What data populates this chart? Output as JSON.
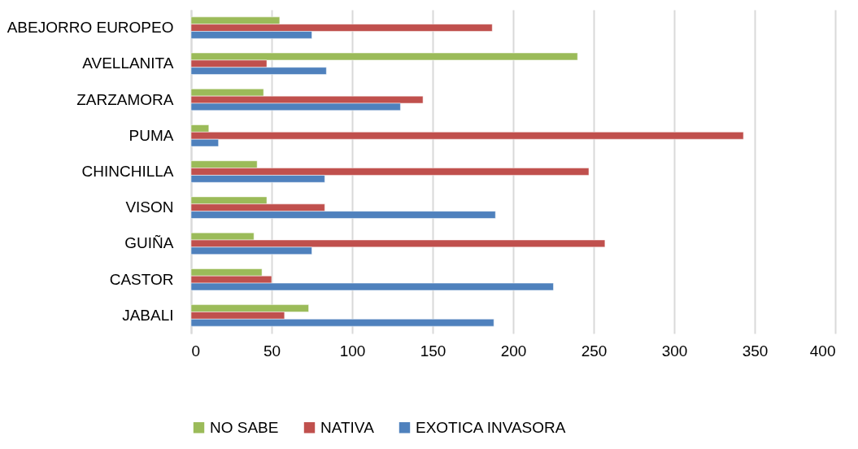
{
  "chart_data": {
    "type": "bar",
    "orientation": "horizontal",
    "categories": [
      "ABEJORRO EUROPEO",
      "AVELLANITA",
      "ZARZAMORA",
      "PUMA",
      "CHINCHILLA",
      "VISON",
      "GUIÑA",
      "CASTOR",
      "JABALI"
    ],
    "series": [
      {
        "name": "NO SABE",
        "color": "#9bbb59",
        "values": [
          55,
          240,
          45,
          11,
          41,
          47,
          39,
          44,
          73
        ]
      },
      {
        "name": "NATIVA",
        "color": "#c0504d",
        "values": [
          187,
          47,
          144,
          343,
          247,
          83,
          257,
          50,
          58
        ]
      },
      {
        "name": "EXOTICA INVASORA",
        "color": "#4f81bd",
        "values": [
          75,
          84,
          130,
          17,
          83,
          189,
          75,
          225,
          188
        ]
      }
    ],
    "xlim": [
      0,
      400
    ],
    "xticks": [
      0,
      50,
      100,
      150,
      200,
      250,
      300,
      350,
      400
    ],
    "grid": "x",
    "legend": "bottom"
  }
}
